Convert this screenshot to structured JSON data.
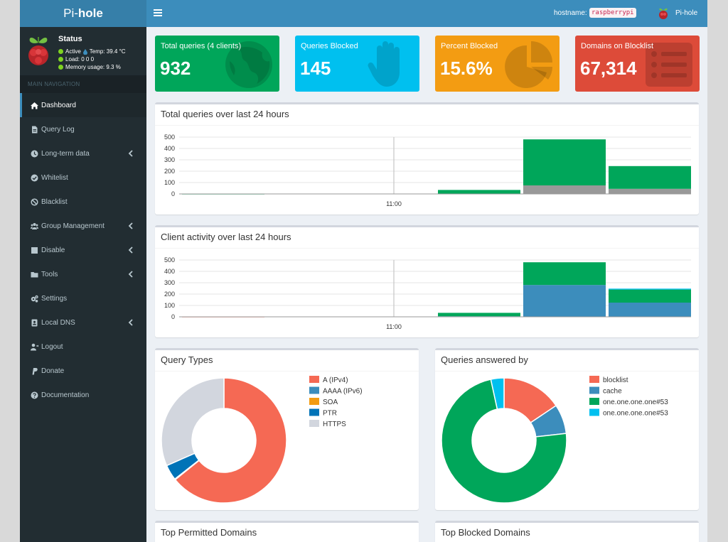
{
  "sidebar": {
    "logo_pre": "Pi-",
    "logo_bold": "hole",
    "status": {
      "title": "Status",
      "active": "Active",
      "temp": "Temp: 39.4 °C",
      "load": "Load:  0  0  0",
      "memory": "Memory usage:  9.3 %"
    },
    "nav_header": "MAIN NAVIGATION",
    "items": [
      {
        "label": "Dashboard",
        "icon": "home-icon",
        "active": true,
        "chevron": false
      },
      {
        "label": "Query Log",
        "icon": "file-icon",
        "active": false,
        "chevron": false
      },
      {
        "label": "Long-term data",
        "icon": "clock-icon",
        "active": false,
        "chevron": true
      },
      {
        "label": "Whitelist",
        "icon": "check-circle-icon",
        "active": false,
        "chevron": false
      },
      {
        "label": "Blacklist",
        "icon": "ban-icon",
        "active": false,
        "chevron": false
      },
      {
        "label": "Group Management",
        "icon": "users-icon",
        "active": false,
        "chevron": true
      },
      {
        "label": "Disable",
        "icon": "stop-icon",
        "active": false,
        "chevron": true
      },
      {
        "label": "Tools",
        "icon": "folder-icon",
        "active": false,
        "chevron": true
      },
      {
        "label": "Settings",
        "icon": "cogs-icon",
        "active": false,
        "chevron": false
      },
      {
        "label": "Local DNS",
        "icon": "address-book-icon",
        "active": false,
        "chevron": true
      },
      {
        "label": "Logout",
        "icon": "user-logout-icon",
        "active": false,
        "chevron": false
      },
      {
        "label": "Donate",
        "icon": "paypal-icon",
        "active": false,
        "chevron": false
      },
      {
        "label": "Documentation",
        "icon": "question-circle-icon",
        "active": false,
        "chevron": false
      }
    ]
  },
  "header": {
    "hostname_label": "hostname:",
    "hostname_value": "raspberrypi",
    "user": "Pi-hole"
  },
  "stats": [
    {
      "label": "Total queries (4 clients)",
      "value": "932",
      "color": "#00a65a",
      "icon": "globe-icon"
    },
    {
      "label": "Queries Blocked",
      "value": "145",
      "color": "#00c0ef",
      "icon": "hand-icon"
    },
    {
      "label": "Percent Blocked",
      "value": "15.6%",
      "color": "#f39c12",
      "icon": "pie-chart-icon"
    },
    {
      "label": "Domains on Blocklist",
      "value": "67,314",
      "color": "#dd4b39",
      "icon": "list-icon"
    }
  ],
  "cards": {
    "queries_over_time": "Total queries over last 24 hours",
    "client_activity": "Client activity over last 24 hours",
    "query_types": "Query Types",
    "answered_by": "Queries answered by",
    "top_permitted": "Top Permitted Domains",
    "top_blocked": "Top Blocked Domains"
  },
  "chart_data": [
    {
      "type": "bar",
      "title": "Total queries over last 24 hours",
      "x_tick": "11:00",
      "ylim": [
        0,
        500
      ],
      "yticks": [
        0,
        100,
        200,
        300,
        400,
        500
      ],
      "bins": 6,
      "series": [
        {
          "name": "",
          "color": "#999999",
          "values": [
            0,
            0,
            0,
            3,
            75,
            45
          ]
        },
        {
          "name": "",
          "color": "#00a65a",
          "values": [
            2,
            0,
            0,
            32,
            405,
            200
          ]
        }
      ]
    },
    {
      "type": "bar",
      "title": "Client activity over last 24 hours",
      "x_tick": "11:00",
      "ylim": [
        0,
        500
      ],
      "yticks": [
        0,
        100,
        200,
        300,
        400,
        500
      ],
      "bins": 6,
      "series": [
        {
          "name": "",
          "color": "#f56954",
          "values": [
            2,
            0,
            0,
            0,
            0,
            0
          ]
        },
        {
          "name": "",
          "color": "#3c8dbc",
          "values": [
            0,
            0,
            0,
            5,
            280,
            125
          ]
        },
        {
          "name": "",
          "color": "#00a65a",
          "values": [
            0,
            0,
            0,
            30,
            200,
            115
          ]
        },
        {
          "name": "",
          "color": "#00c0ef",
          "values": [
            0,
            0,
            0,
            0,
            0,
            8
          ]
        }
      ]
    },
    {
      "type": "pie",
      "title": "Query Types",
      "labels": [
        "A (IPv4)",
        "AAAA (IPv6)",
        "SOA",
        "PTR",
        "HTTPS"
      ],
      "values": [
        64.2,
        0.1,
        0.1,
        4.0,
        31.6
      ],
      "colors": [
        "#f56954",
        "#3c8dbc",
        "#f39c12",
        "#0073b7",
        "#d2d6de"
      ]
    },
    {
      "type": "pie",
      "title": "Queries answered by",
      "labels": [
        "blocklist",
        "cache",
        "one.one.one.one#53",
        "one.one.one.one#53"
      ],
      "values": [
        15.6,
        7.6,
        73.4,
        3.4
      ],
      "colors": [
        "#f56954",
        "#3c8dbc",
        "#00a65a",
        "#00c0ef"
      ]
    }
  ]
}
